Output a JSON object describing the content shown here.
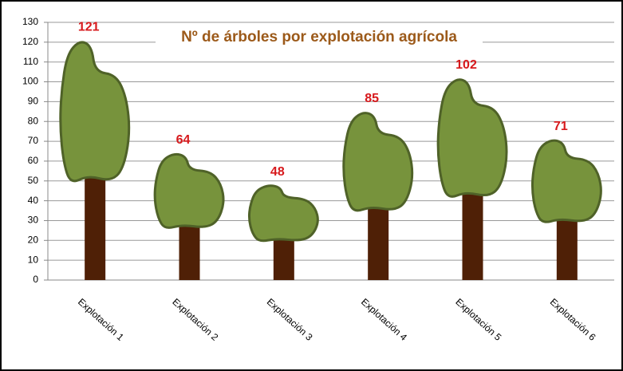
{
  "chart_data": {
    "type": "tree-pictogram",
    "title": "Nº de árboles por explotación agrícola",
    "categories": [
      "Explotación 1",
      "Explotación 2",
      "Explotación 3",
      "Explotación 4",
      "Explotación 5",
      "Explotación 6"
    ],
    "values": [
      121,
      64,
      48,
      85,
      102,
      71
    ],
    "ylim": [
      0,
      130
    ],
    "yticks": [
      0,
      10,
      20,
      30,
      40,
      50,
      60,
      70,
      80,
      90,
      100,
      110,
      120,
      130
    ],
    "grid": true,
    "crown_color": "#77933c",
    "trunk_color": "#4f2006",
    "label_color": "#d7191c"
  }
}
